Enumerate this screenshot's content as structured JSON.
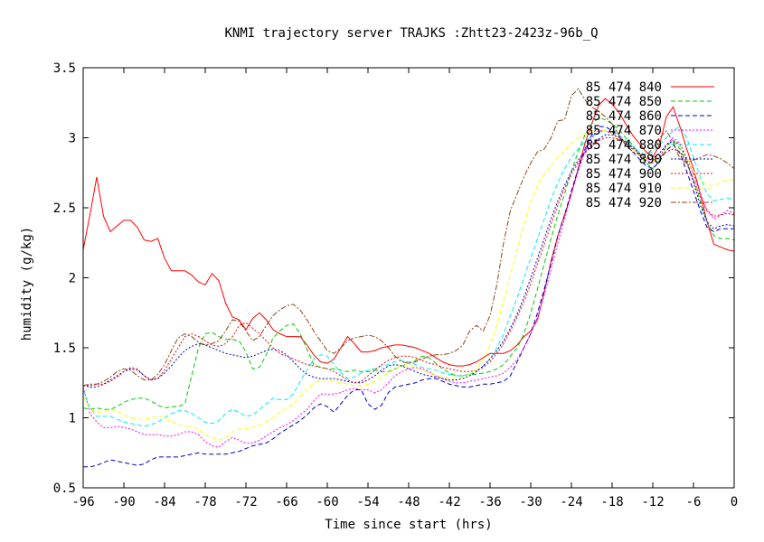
{
  "chart_data": {
    "type": "line",
    "title": "KNMI trajectory server TRAJKS :Zhtt23-2423z-96b_Q",
    "xlabel": "Time since start (hrs)",
    "ylabel": "humidity (g/kg)",
    "xlim": [
      -96,
      0
    ],
    "ylim": [
      0.5,
      3.5
    ],
    "xticks": [
      -96,
      -90,
      -84,
      -78,
      -72,
      -66,
      -60,
      -54,
      -48,
      -42,
      -36,
      -30,
      -24,
      -18,
      -12,
      -6,
      0
    ],
    "xtick_labels": [
      "-96",
      "-90",
      "-84",
      "-78",
      "-72",
      "-66",
      "-60",
      "-54",
      "-48",
      "-42",
      "-36",
      "-30",
      "-24",
      "-18",
      "-12",
      "-6",
      "0"
    ],
    "yticks": [
      0.5,
      1,
      1.5,
      2,
      2.5,
      3,
      3.5
    ],
    "ytick_labels": [
      "0.5",
      "1",
      "1.5",
      "2",
      "2.5",
      "3",
      "3.5"
    ],
    "grid": false,
    "legend_position": "top-right",
    "x": [
      -96,
      -95,
      -94,
      -93,
      -92,
      -91,
      -90,
      -89,
      -88,
      -87,
      -86,
      -85,
      -84,
      -83,
      -82,
      -81,
      -80,
      -79,
      -78,
      -77,
      -76,
      -75,
      -74,
      -73,
      -72,
      -71,
      -70,
      -69,
      -68,
      -67,
      -66,
      -65,
      -64,
      -63,
      -62,
      -61,
      -60,
      -59,
      -58,
      -57,
      -56,
      -55,
      -54,
      -53,
      -52,
      -51,
      -50,
      -49,
      -48,
      -47,
      -46,
      -45,
      -44,
      -43,
      -42,
      -41,
      -40,
      -39,
      -38,
      -37,
      -36,
      -35,
      -34,
      -33,
      -32,
      -31,
      -30,
      -29,
      -28,
      -27,
      -26,
      -25,
      -24,
      -23,
      -22,
      -21,
      -20,
      -19,
      -18,
      -17,
      -16,
      -15,
      -14,
      -13,
      -12,
      -11,
      -10,
      -9,
      -8,
      -7,
      -6,
      -5,
      -4,
      -3,
      -2,
      -1,
      0
    ],
    "series": [
      {
        "name": "85 474 840",
        "color": "#ff0000",
        "dash": "solid",
        "values": [
          2.2,
          2.45,
          2.72,
          2.44,
          2.33,
          2.37,
          2.41,
          2.41,
          2.36,
          2.27,
          2.26,
          2.28,
          2.14,
          2.05,
          2.05,
          2.05,
          2.02,
          1.97,
          1.95,
          2.03,
          1.98,
          1.82,
          1.72,
          1.7,
          1.63,
          1.71,
          1.75,
          1.7,
          1.63,
          1.6,
          1.58,
          1.58,
          1.58,
          1.52,
          1.45,
          1.4,
          1.39,
          1.42,
          1.5,
          1.58,
          1.53,
          1.47,
          1.47,
          1.48,
          1.5,
          1.51,
          1.52,
          1.52,
          1.51,
          1.5,
          1.48,
          1.46,
          1.43,
          1.4,
          1.38,
          1.37,
          1.37,
          1.38,
          1.4,
          1.43,
          1.46,
          1.46,
          1.46,
          1.48,
          1.52,
          1.58,
          1.62,
          1.7,
          1.9,
          2.12,
          2.3,
          2.45,
          2.6,
          2.78,
          2.96,
          3.1,
          3.23,
          3.28,
          3.24,
          3.18,
          3.1,
          3.02,
          2.96,
          2.9,
          2.86,
          2.95,
          3.15,
          3.22,
          3.08,
          2.92,
          2.78,
          2.6,
          2.4,
          2.24,
          2.22,
          2.2,
          2.19
        ]
      },
      {
        "name": "85 474 850",
        "color": "#00cc00",
        "dash": "dashed",
        "values": [
          1.07,
          1.06,
          1.07,
          1.06,
          1.06,
          1.08,
          1.11,
          1.13,
          1.14,
          1.14,
          1.12,
          1.09,
          1.07,
          1.08,
          1.08,
          1.1,
          1.3,
          1.5,
          1.6,
          1.61,
          1.58,
          1.56,
          1.56,
          1.55,
          1.47,
          1.35,
          1.36,
          1.45,
          1.57,
          1.62,
          1.66,
          1.67,
          1.6,
          1.49,
          1.38,
          1.36,
          1.35,
          1.35,
          1.34,
          1.33,
          1.34,
          1.33,
          1.33,
          1.34,
          1.33,
          1.33,
          1.35,
          1.37,
          1.39,
          1.41,
          1.44,
          1.43,
          1.39,
          1.35,
          1.32,
          1.3,
          1.3,
          1.31,
          1.31,
          1.32,
          1.33,
          1.35,
          1.38,
          1.44,
          1.5,
          1.6,
          1.75,
          1.92,
          2.1,
          2.28,
          2.45,
          2.6,
          2.76,
          2.9,
          3.02,
          3.1,
          3.14,
          3.13,
          3.1,
          3.06,
          3.0,
          2.95,
          2.88,
          2.82,
          2.78,
          2.84,
          2.94,
          2.98,
          2.92,
          2.82,
          2.7,
          2.55,
          2.4,
          2.3,
          2.28,
          2.28,
          2.27
        ]
      },
      {
        "name": "85 474 860",
        "color": "#0000cc",
        "dash": "dashed",
        "values": [
          0.65,
          0.65,
          0.66,
          0.68,
          0.7,
          0.69,
          0.68,
          0.67,
          0.66,
          0.67,
          0.7,
          0.72,
          0.72,
          0.72,
          0.72,
          0.73,
          0.74,
          0.75,
          0.74,
          0.74,
          0.74,
          0.74,
          0.75,
          0.76,
          0.78,
          0.8,
          0.81,
          0.82,
          0.85,
          0.89,
          0.92,
          0.95,
          0.98,
          1.02,
          1.07,
          1.1,
          1.08,
          1.04,
          1.1,
          1.16,
          1.2,
          1.2,
          1.1,
          1.06,
          1.09,
          1.18,
          1.22,
          1.23,
          1.24,
          1.25,
          1.27,
          1.28,
          1.28,
          1.26,
          1.24,
          1.23,
          1.22,
          1.22,
          1.23,
          1.24,
          1.24,
          1.25,
          1.26,
          1.3,
          1.4,
          1.5,
          1.6,
          1.75,
          1.92,
          2.1,
          2.3,
          2.45,
          2.62,
          2.78,
          2.92,
          3.02,
          3.08,
          3.08,
          3.05,
          3.01,
          2.95,
          2.9,
          2.85,
          2.8,
          2.78,
          2.83,
          2.91,
          2.95,
          2.89,
          2.76,
          2.62,
          2.48,
          2.36,
          2.33,
          2.35,
          2.35,
          2.35
        ]
      },
      {
        "name": "85 474 870",
        "color": "#ff00ff",
        "dash": "dotted",
        "values": [
          1.22,
          1.03,
          0.97,
          0.93,
          0.93,
          0.94,
          0.93,
          0.92,
          0.9,
          0.88,
          0.88,
          0.88,
          0.87,
          0.87,
          0.88,
          0.9,
          0.9,
          0.88,
          0.83,
          0.8,
          0.79,
          0.83,
          0.86,
          0.84,
          0.82,
          0.82,
          0.84,
          0.87,
          0.9,
          0.93,
          0.95,
          0.98,
          1.02,
          1.06,
          1.12,
          1.17,
          1.17,
          1.17,
          1.18,
          1.2,
          1.21,
          1.2,
          1.2,
          1.18,
          1.2,
          1.25,
          1.3,
          1.33,
          1.35,
          1.36,
          1.35,
          1.33,
          1.3,
          1.28,
          1.26,
          1.25,
          1.25,
          1.26,
          1.27,
          1.28,
          1.29,
          1.3,
          1.32,
          1.36,
          1.42,
          1.5,
          1.6,
          1.72,
          1.88,
          2.06,
          2.25,
          2.42,
          2.6,
          2.76,
          2.9,
          3.0,
          3.05,
          3.05,
          3.03,
          3.0,
          2.96,
          2.92,
          2.88,
          2.84,
          2.82,
          2.86,
          2.95,
          3.0,
          2.96,
          2.86,
          2.74,
          2.6,
          2.48,
          2.42,
          2.45,
          2.48,
          2.46
        ]
      },
      {
        "name": "85 474 880",
        "color": "#00eeee",
        "dash": "dashed",
        "values": [
          1.2,
          1.07,
          1.01,
          1.01,
          1.01,
          0.99,
          0.97,
          0.96,
          0.95,
          0.94,
          0.95,
          0.97,
          1.0,
          1.03,
          1.05,
          1.05,
          1.03,
          1.0,
          0.97,
          0.96,
          0.98,
          1.03,
          1.06,
          1.04,
          1.01,
          1.02,
          1.06,
          1.1,
          1.14,
          1.13,
          1.13,
          1.17,
          1.26,
          1.34,
          1.42,
          1.45,
          1.44,
          1.38,
          1.32,
          1.28,
          1.29,
          1.32,
          1.34,
          1.35,
          1.37,
          1.38,
          1.4,
          1.41,
          1.4,
          1.38,
          1.36,
          1.35,
          1.34,
          1.32,
          1.31,
          1.3,
          1.3,
          1.31,
          1.33,
          1.37,
          1.42,
          1.5,
          1.6,
          1.73,
          1.86,
          2.0,
          2.14,
          2.28,
          2.42,
          2.56,
          2.68,
          2.78,
          2.86,
          2.92,
          2.97,
          3.01,
          3.04,
          3.05,
          3.04,
          3.02,
          2.98,
          2.94,
          2.9,
          2.88,
          2.9,
          2.95,
          3.0,
          3.05,
          3.08,
          3.0,
          2.86,
          2.72,
          2.6,
          2.55,
          2.56,
          2.57,
          2.56
        ]
      },
      {
        "name": "85 474 890",
        "color": "#0000cc",
        "dash": "dotted",
        "values": [
          1.23,
          1.22,
          1.22,
          1.24,
          1.27,
          1.3,
          1.33,
          1.35,
          1.34,
          1.3,
          1.27,
          1.28,
          1.32,
          1.37,
          1.43,
          1.48,
          1.51,
          1.53,
          1.52,
          1.5,
          1.48,
          1.46,
          1.45,
          1.44,
          1.43,
          1.44,
          1.46,
          1.48,
          1.49,
          1.48,
          1.45,
          1.4,
          1.35,
          1.31,
          1.29,
          1.28,
          1.28,
          1.28,
          1.27,
          1.26,
          1.25,
          1.25,
          1.27,
          1.3,
          1.34,
          1.37,
          1.38,
          1.37,
          1.35,
          1.33,
          1.31,
          1.3,
          1.29,
          1.28,
          1.27,
          1.27,
          1.28,
          1.3,
          1.33,
          1.37,
          1.42,
          1.48,
          1.55,
          1.64,
          1.74,
          1.86,
          2.0,
          2.14,
          2.28,
          2.42,
          2.55,
          2.66,
          2.76,
          2.84,
          2.9,
          2.95,
          2.99,
          3.02,
          3.02,
          3.0,
          2.97,
          2.93,
          2.89,
          2.86,
          2.85,
          2.89,
          2.95,
          2.98,
          2.95,
          2.84,
          2.68,
          2.52,
          2.4,
          2.35,
          2.37,
          2.38,
          2.37
        ]
      },
      {
        "name": "85 474 900",
        "color": "#ff0000",
        "dash": "dotted",
        "values": [
          1.23,
          1.23,
          1.24,
          1.24,
          1.26,
          1.29,
          1.33,
          1.36,
          1.35,
          1.3,
          1.27,
          1.28,
          1.34,
          1.42,
          1.5,
          1.58,
          1.6,
          1.58,
          1.55,
          1.52,
          1.51,
          1.53,
          1.58,
          1.66,
          1.68,
          1.64,
          1.6,
          1.55,
          1.5,
          1.46,
          1.44,
          1.42,
          1.4,
          1.38,
          1.37,
          1.36,
          1.35,
          1.33,
          1.3,
          1.27,
          1.25,
          1.26,
          1.3,
          1.34,
          1.38,
          1.41,
          1.43,
          1.44,
          1.44,
          1.43,
          1.41,
          1.39,
          1.38,
          1.36,
          1.35,
          1.34,
          1.33,
          1.33,
          1.34,
          1.36,
          1.4,
          1.46,
          1.53,
          1.62,
          1.72,
          1.83,
          1.96,
          2.1,
          2.24,
          2.38,
          2.52,
          2.64,
          2.74,
          2.82,
          2.89,
          2.94,
          2.98,
          3.0,
          3.0,
          2.99,
          2.96,
          2.92,
          2.88,
          2.85,
          2.84,
          2.86,
          2.9,
          2.92,
          2.9,
          2.82,
          2.7,
          2.58,
          2.48,
          2.44,
          2.45,
          2.46,
          2.45
        ]
      },
      {
        "name": "85 474 910",
        "color": "#ffff00",
        "dash": "dashed",
        "values": [
          1.15,
          1.06,
          1.04,
          1.04,
          1.06,
          1.05,
          1.02,
          1.0,
          0.99,
          0.99,
          1.0,
          1.01,
          1.0,
          0.97,
          0.95,
          0.94,
          0.94,
          0.92,
          0.88,
          0.86,
          0.84,
          0.86,
          0.9,
          0.92,
          0.92,
          0.93,
          0.95,
          0.97,
          1.0,
          1.04,
          1.07,
          1.1,
          1.15,
          1.2,
          1.25,
          1.27,
          1.27,
          1.26,
          1.25,
          1.24,
          1.23,
          1.23,
          1.24,
          1.26,
          1.29,
          1.32,
          1.35,
          1.37,
          1.37,
          1.36,
          1.34,
          1.32,
          1.3,
          1.29,
          1.28,
          1.28,
          1.29,
          1.31,
          1.35,
          1.42,
          1.52,
          1.66,
          1.84,
          2.02,
          2.2,
          2.38,
          2.54,
          2.66,
          2.74,
          2.8,
          2.86,
          2.91,
          2.96,
          3.0,
          3.03,
          3.05,
          3.06,
          3.05,
          3.03,
          3.0,
          2.96,
          2.92,
          2.88,
          2.85,
          2.83,
          2.86,
          2.92,
          2.96,
          2.94,
          2.86,
          2.76,
          2.7,
          2.66,
          2.66,
          2.68,
          2.7,
          2.7
        ]
      },
      {
        "name": "85 474 920",
        "color": "#8b4513",
        "dash": "dashdot",
        "values": [
          1.23,
          1.24,
          1.24,
          1.26,
          1.29,
          1.33,
          1.35,
          1.34,
          1.3,
          1.27,
          1.27,
          1.31,
          1.38,
          1.48,
          1.57,
          1.6,
          1.58,
          1.54,
          1.52,
          1.53,
          1.55,
          1.62,
          1.7,
          1.69,
          1.62,
          1.55,
          1.58,
          1.66,
          1.73,
          1.77,
          1.8,
          1.81,
          1.77,
          1.7,
          1.62,
          1.55,
          1.48,
          1.46,
          1.5,
          1.55,
          1.57,
          1.58,
          1.59,
          1.58,
          1.55,
          1.5,
          1.44,
          1.4,
          1.39,
          1.4,
          1.42,
          1.44,
          1.45,
          1.45,
          1.46,
          1.48,
          1.52,
          1.62,
          1.66,
          1.62,
          1.73,
          1.95,
          2.25,
          2.48,
          2.6,
          2.72,
          2.82,
          2.9,
          2.92,
          3.0,
          3.12,
          3.13,
          3.3,
          3.35,
          3.27,
          3.22,
          3.19,
          3.15,
          3.1,
          3.02,
          2.96,
          2.9,
          2.88,
          2.88,
          2.92,
          3.0,
          3.05,
          2.97,
          2.85,
          2.82,
          2.84,
          2.86,
          2.88,
          2.87,
          2.85,
          2.82,
          2.78
        ]
      }
    ]
  }
}
